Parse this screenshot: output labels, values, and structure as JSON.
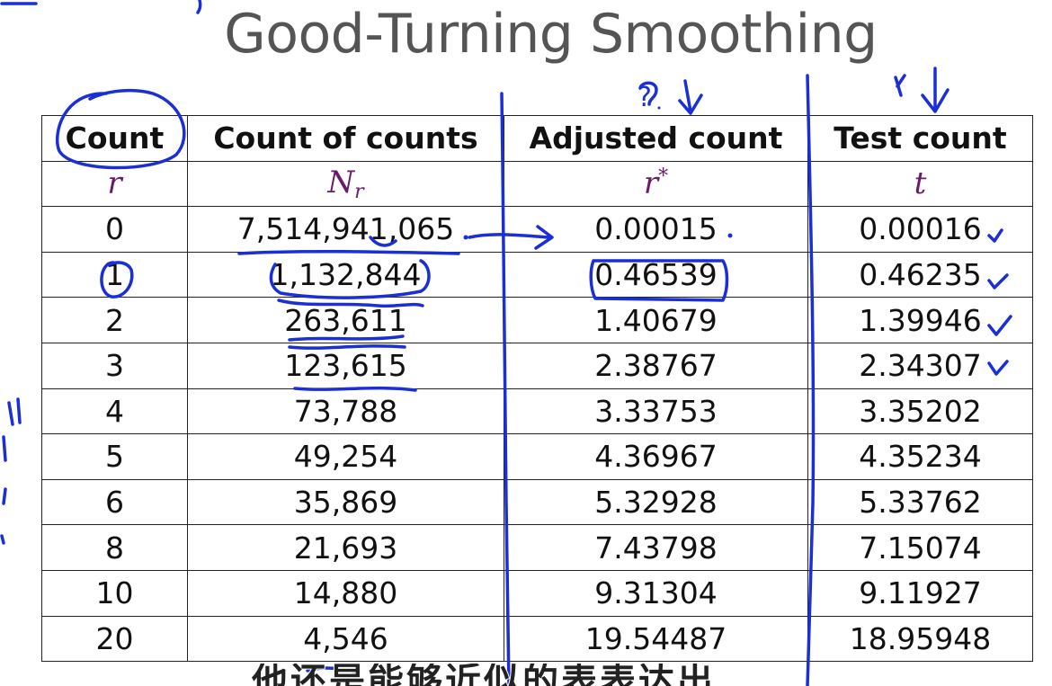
{
  "slide": {
    "title": "Good-Turning Smoothing"
  },
  "table": {
    "headers": [
      "Count",
      "Count of counts",
      "Adjusted count",
      "Test count"
    ],
    "symbols": {
      "count": "r",
      "count_of_counts_base": "N",
      "count_of_counts_sub": "r",
      "adjusted_base": "r",
      "adjusted_sup": "*",
      "test": "t"
    },
    "rows": [
      {
        "count": "0",
        "count_of_counts": "7,514,941,065",
        "adjusted": "0.00015",
        "test": "0.00016"
      },
      {
        "count": "1",
        "count_of_counts": "1,132,844",
        "adjusted": "0.46539",
        "test": "0.46235"
      },
      {
        "count": "2",
        "count_of_counts": "263,611",
        "adjusted": "1.40679",
        "test": "1.39946"
      },
      {
        "count": "3",
        "count_of_counts": "123,615",
        "adjusted": "2.38767",
        "test": "2.34307"
      },
      {
        "count": "4",
        "count_of_counts": "73,788",
        "adjusted": "3.33753",
        "test": "3.35202"
      },
      {
        "count": "5",
        "count_of_counts": "49,254",
        "adjusted": "4.36967",
        "test": "4.35234"
      },
      {
        "count": "6",
        "count_of_counts": "35,869",
        "adjusted": "5.32928",
        "test": "5.33762"
      },
      {
        "count": "8",
        "count_of_counts": "21,693",
        "adjusted": "7.43798",
        "test": "7.15074"
      },
      {
        "count": "10",
        "count_of_counts": "14,880",
        "adjusted": "9.31304",
        "test": "9.11927"
      },
      {
        "count": "20",
        "count_of_counts": "4,546",
        "adjusted": "19.54487",
        "test": "18.95948"
      }
    ]
  },
  "annotations": {
    "question_mark": "?",
    "ink_color": "#1a2fd6"
  },
  "subtitle": {
    "text": "他还是能够近似的表表达出"
  },
  "colors": {
    "title": "#555555",
    "symbol_purple": "#6a1a6a",
    "ink_blue": "#1a2fd6"
  }
}
